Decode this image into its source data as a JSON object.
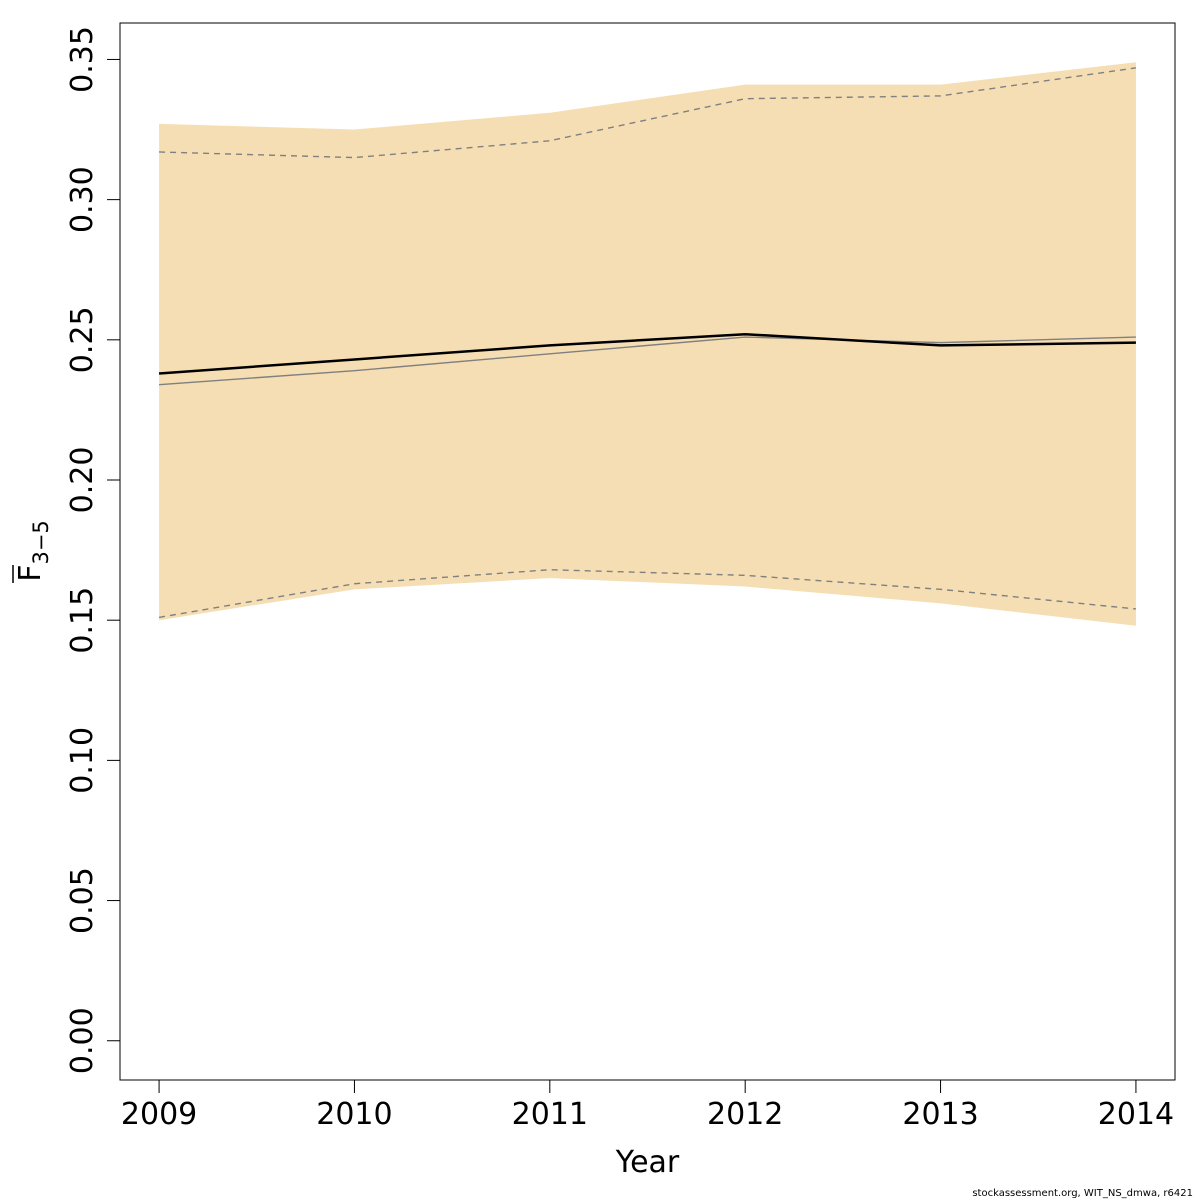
{
  "chart_data": {
    "type": "line",
    "xlabel": "Year",
    "ylabel": "F",
    "ylabel_subscript": "3−5",
    "x": [
      2009,
      2010,
      2011,
      2012,
      2013,
      2014
    ],
    "xlim": [
      2008.8,
      2014.2
    ],
    "ylim": [
      -0.014,
      0.363
    ],
    "yticks": [
      0.0,
      0.05,
      0.1,
      0.15,
      0.2,
      0.25,
      0.3,
      0.35
    ],
    "ytick_labels": [
      "0.00",
      "0.05",
      "0.10",
      "0.15",
      "0.20",
      "0.25",
      "0.30",
      "0.35"
    ],
    "xtick_labels": [
      "2009",
      "2010",
      "2011",
      "2012",
      "2013",
      "2014"
    ],
    "grid": false,
    "band": {
      "color": "#F5DEB3",
      "upper": [
        0.327,
        0.325,
        0.331,
        0.341,
        0.341,
        0.349
      ],
      "lower": [
        0.15,
        0.161,
        0.165,
        0.162,
        0.156,
        0.148
      ]
    },
    "series": [
      {
        "values": [
          0.238,
          0.243,
          0.248,
          0.252,
          0.248,
          0.249
        ],
        "color": "#000000",
        "style": "solid",
        "weight": "thick"
      },
      {
        "values": [
          0.234,
          0.239,
          0.245,
          0.251,
          0.249,
          0.251
        ],
        "color": "#808080",
        "style": "solid",
        "weight": "thin"
      },
      {
        "values": [
          0.317,
          0.315,
          0.321,
          0.336,
          0.337,
          0.347
        ],
        "color": "#808080",
        "style": "dashed",
        "weight": "thin"
      },
      {
        "values": [
          0.151,
          0.163,
          0.168,
          0.166,
          0.161,
          0.154
        ],
        "color": "#808080",
        "style": "dashed",
        "weight": "thin"
      }
    ]
  },
  "footer": "stockassessment.org, WIT_NS_dmwa, r6421"
}
